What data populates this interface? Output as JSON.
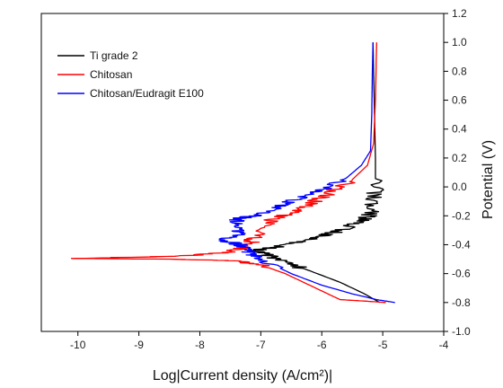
{
  "chart_data": {
    "type": "line",
    "title": "",
    "xlabel": "Log|Current density (A/cm²)|",
    "ylabel": "Potential (V)",
    "xlim": [
      -10.6,
      -4.0
    ],
    "ylim": [
      -1.0,
      1.2
    ],
    "x_ticks": [
      -10,
      -9,
      -8,
      -7,
      -6,
      -5,
      -4
    ],
    "y_ticks": [
      -1.0,
      -0.8,
      -0.6,
      -0.4,
      -0.2,
      0.0,
      0.2,
      0.4,
      0.6,
      0.8,
      1.0,
      1.2
    ],
    "y_axis_side": "right",
    "grid": false,
    "legend": "top-left",
    "series": [
      {
        "name": "Ti grade 2",
        "color": "#000000",
        "points": [
          [
            -5.05,
            -0.8
          ],
          [
            -5.3,
            -0.74
          ],
          [
            -5.7,
            -0.66
          ],
          [
            -6.2,
            -0.58
          ],
          [
            -6.6,
            -0.52
          ],
          [
            -6.9,
            -0.47
          ],
          [
            -7.1,
            -0.44
          ],
          [
            -6.8,
            -0.42
          ],
          [
            -6.4,
            -0.38
          ],
          [
            -6.0,
            -0.34
          ],
          [
            -5.7,
            -0.3
          ],
          [
            -5.4,
            -0.25
          ],
          [
            -5.22,
            -0.2
          ],
          [
            -5.15,
            -0.1
          ],
          [
            -5.12,
            0.0
          ],
          [
            -5.12,
            0.2
          ],
          [
            -5.13,
            0.4
          ],
          [
            -5.14,
            0.6
          ],
          [
            -5.15,
            0.8
          ],
          [
            -5.16,
            1.0
          ]
        ]
      },
      {
        "name": "Chitosan",
        "color": "#ff0000",
        "points": [
          [
            -4.95,
            -0.8
          ],
          [
            -5.3,
            -0.79
          ],
          [
            -5.7,
            -0.78
          ],
          [
            -6.0,
            -0.72
          ],
          [
            -6.3,
            -0.66
          ],
          [
            -6.6,
            -0.6
          ],
          [
            -7.0,
            -0.54
          ],
          [
            -7.5,
            -0.51
          ],
          [
            -8.5,
            -0.5
          ],
          [
            -10.1,
            -0.495
          ],
          [
            -8.3,
            -0.48
          ],
          [
            -7.5,
            -0.45
          ],
          [
            -7.2,
            -0.4
          ],
          [
            -7.1,
            -0.35
          ],
          [
            -7.0,
            -0.28
          ],
          [
            -6.8,
            -0.22
          ],
          [
            -6.5,
            -0.18
          ],
          [
            -6.2,
            -0.12
          ],
          [
            -5.9,
            -0.05
          ],
          [
            -5.5,
            0.05
          ],
          [
            -5.25,
            0.15
          ],
          [
            -5.15,
            0.3
          ],
          [
            -5.12,
            0.6
          ],
          [
            -5.1,
            1.0
          ]
        ]
      },
      {
        "name": "Chitosan/Eudragit E100",
        "color": "#0000ff",
        "points": [
          [
            -4.8,
            -0.8
          ],
          [
            -5.1,
            -0.78
          ],
          [
            -5.5,
            -0.74
          ],
          [
            -6.0,
            -0.68
          ],
          [
            -6.5,
            -0.6
          ],
          [
            -7.0,
            -0.5
          ],
          [
            -7.2,
            -0.45
          ],
          [
            -7.35,
            -0.4
          ],
          [
            -7.6,
            -0.37
          ],
          [
            -7.4,
            -0.33
          ],
          [
            -7.3,
            -0.28
          ],
          [
            -7.4,
            -0.22
          ],
          [
            -7.1,
            -0.2
          ],
          [
            -6.8,
            -0.15
          ],
          [
            -6.5,
            -0.1
          ],
          [
            -6.2,
            -0.05
          ],
          [
            -5.9,
            0.0
          ],
          [
            -5.6,
            0.06
          ],
          [
            -5.35,
            0.15
          ],
          [
            -5.2,
            0.25
          ],
          [
            -5.18,
            0.5
          ],
          [
            -5.17,
            0.8
          ],
          [
            -5.16,
            1.0
          ]
        ]
      }
    ]
  }
}
